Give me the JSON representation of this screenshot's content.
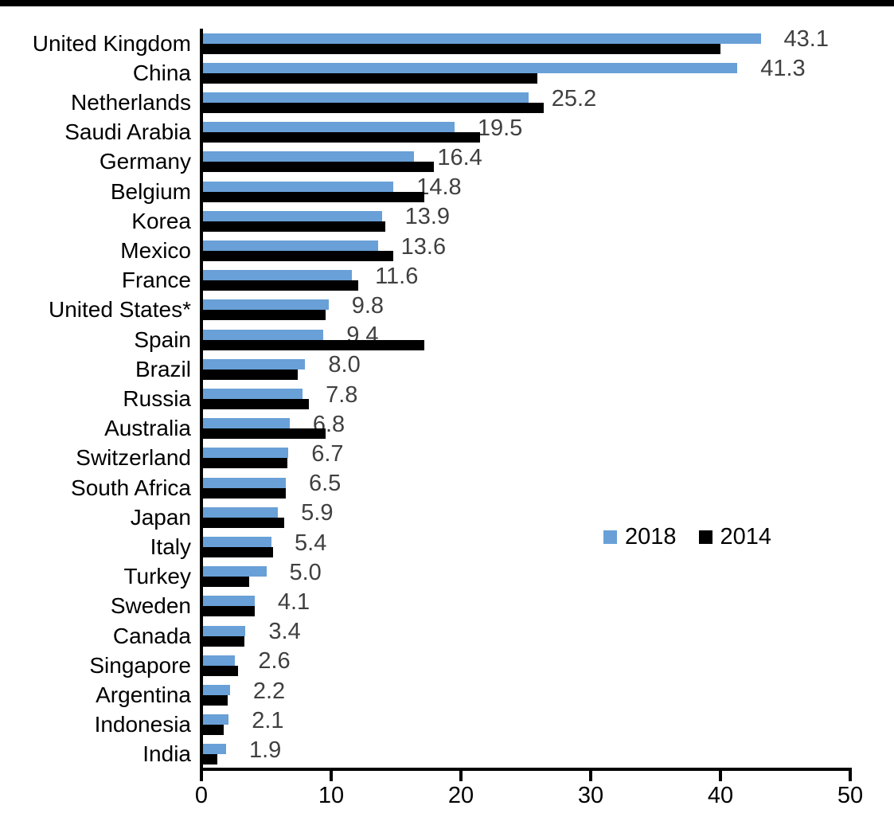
{
  "chart_data": {
    "type": "bar",
    "orientation": "horizontal",
    "title": "",
    "xlabel": "",
    "ylabel": "",
    "xlim": [
      0,
      50
    ],
    "x_ticks": [
      0,
      10,
      20,
      30,
      40,
      50
    ],
    "grid": false,
    "legend_position": "middle-right",
    "data_labels": "2018 series only, one decimal, outside end of blue bar",
    "categories": [
      "United Kingdom",
      "China",
      "Netherlands",
      "Saudi Arabia",
      "Germany",
      "Belgium",
      "Korea",
      "Mexico",
      "France",
      "United States*",
      "Spain",
      "Brazil",
      "Russia",
      "Australia",
      "Switzerland",
      "South Africa",
      "Japan",
      "Italy",
      "Turkey",
      "Sweden",
      "Canada",
      "Singapore",
      "Argentina",
      "Indonesia",
      "India"
    ],
    "series": [
      {
        "name": "2018",
        "color": "#69A0D7",
        "values": [
          43.1,
          41.3,
          25.2,
          19.5,
          16.4,
          14.8,
          13.9,
          13.6,
          11.6,
          9.8,
          9.4,
          8.0,
          7.8,
          6.8,
          6.7,
          6.5,
          5.9,
          5.4,
          5.0,
          4.1,
          3.4,
          2.6,
          2.2,
          2.1,
          1.9
        ]
      },
      {
        "name": "2014",
        "color": "#000000",
        "values": [
          40.0,
          25.9,
          26.4,
          21.5,
          17.9,
          17.2,
          14.2,
          14.8,
          12.1,
          9.6,
          17.2,
          7.4,
          8.3,
          9.6,
          6.6,
          6.5,
          6.4,
          5.5,
          3.7,
          4.1,
          3.3,
          2.8,
          2.0,
          1.7,
          1.2
        ]
      }
    ],
    "value_label_color": "#404040",
    "axis_color": "#000000"
  },
  "legend": {
    "items": [
      {
        "label": "2018",
        "color": "#69A0D7"
      },
      {
        "label": "2014",
        "color": "#000000"
      }
    ]
  }
}
